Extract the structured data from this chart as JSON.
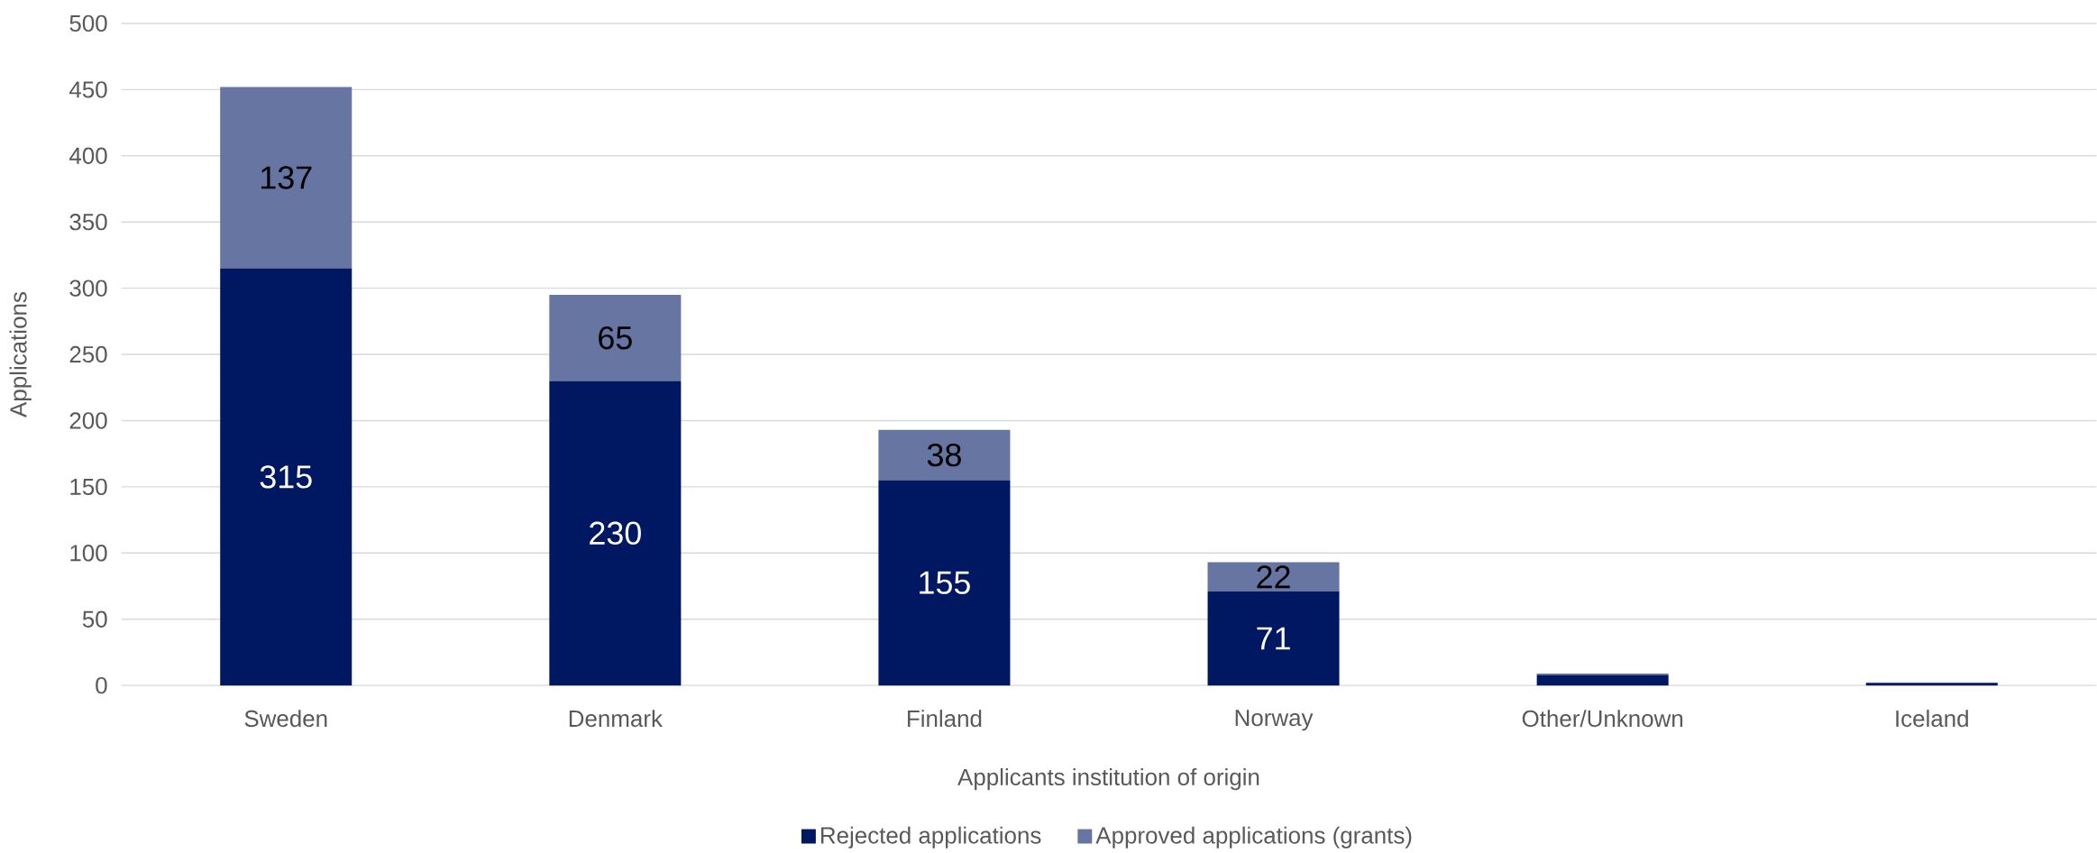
{
  "chart_data": {
    "type": "bar",
    "stacked": true,
    "xlabel": "Applicants institution of origin",
    "ylabel": "Applications",
    "categories": [
      "Sweden",
      "Denmark",
      "Finland",
      "Norway",
      "Other/Unknown",
      "Iceland"
    ],
    "series": [
      {
        "name": "Rejected applications",
        "color": "#001862",
        "values": [
          315,
          230,
          155,
          71,
          8,
          2
        ],
        "value_labels": [
          "315",
          "230",
          "155",
          "71",
          null,
          null
        ]
      },
      {
        "name": "Approved applications (grants)",
        "color": "#6675a1",
        "values": [
          137,
          65,
          38,
          22,
          1,
          0
        ],
        "value_labels": [
          "137",
          "65",
          "38",
          "22",
          null,
          null
        ]
      }
    ],
    "ylim": [
      0,
      500
    ],
    "yticks": [
      0,
      50,
      100,
      150,
      200,
      250,
      300,
      350,
      400,
      450,
      500
    ],
    "grid": "y",
    "legend": "bottom"
  }
}
